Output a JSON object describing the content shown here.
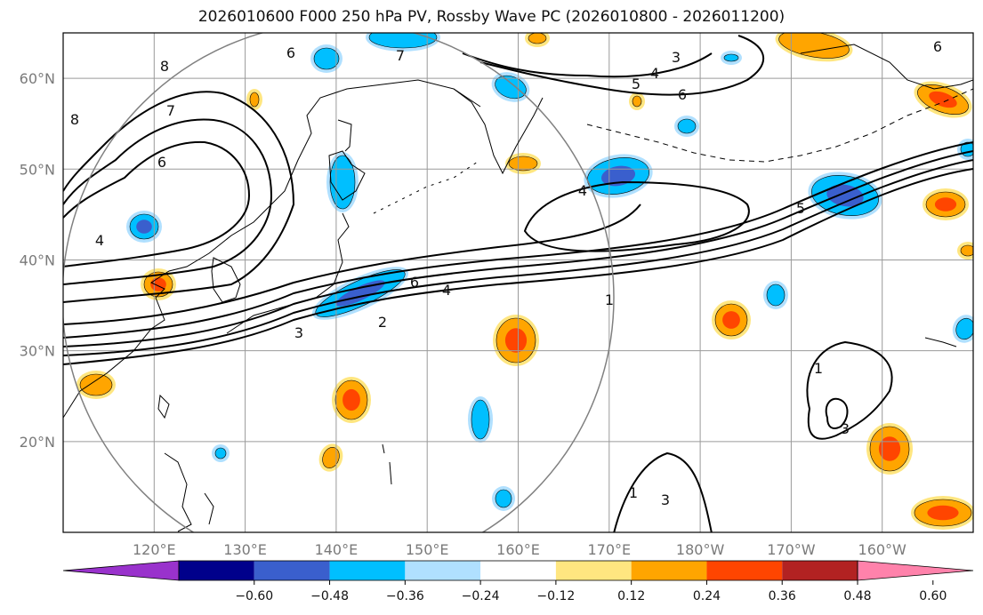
{
  "title": "2026010600 F000 250 hPa PV, Rossby Wave PC (2026010800 - 2026011200)",
  "lat_labels": [
    "60°N",
    "50°N",
    "40°N",
    "30°N",
    "20°N"
  ],
  "lon_labels": [
    "120°E",
    "130°E",
    "140°E",
    "150°E",
    "160°E",
    "170°E",
    "180°W",
    "170°W",
    "160°W"
  ],
  "map_extent": {
    "lon_min": 110,
    "lon_max": 210,
    "lat_min": 10,
    "lat_max": 65
  },
  "pv_contour_levels": [
    "1",
    "2",
    "3",
    "4",
    "5",
    "6",
    "7",
    "8"
  ],
  "contour_labels": [
    "6",
    "7",
    "8",
    "7",
    "6",
    "4",
    "8",
    "3",
    "5",
    "4",
    "6",
    "6",
    "4",
    "1",
    "6",
    "4",
    "3",
    "2",
    "5",
    "1",
    "1",
    "3",
    "3"
  ],
  "colorbar": {
    "tick_labels": [
      "−0.60",
      "−0.48",
      "−0.36",
      "−0.24",
      "−0.12",
      "0.12",
      "0.24",
      "0.36",
      "0.48",
      "0.60"
    ],
    "colors": [
      "#9932cc",
      "#00008b",
      "#3a5fcd",
      "#00bfff",
      "#b0e0ff",
      "#ffffff",
      "#ffe680",
      "#ffa500",
      "#ff4500",
      "#b22222",
      "#ff82ab"
    ]
  },
  "colors": {
    "neg_strong": "#3a5fcd",
    "neg_mid": "#00bfff",
    "neg_weak": "#b0e0ff",
    "pos_weak": "#ffe680",
    "pos_mid": "#ffa500",
    "pos_strong": "#ff4500",
    "grid": "#9a9a9a",
    "circle": "#808080"
  }
}
